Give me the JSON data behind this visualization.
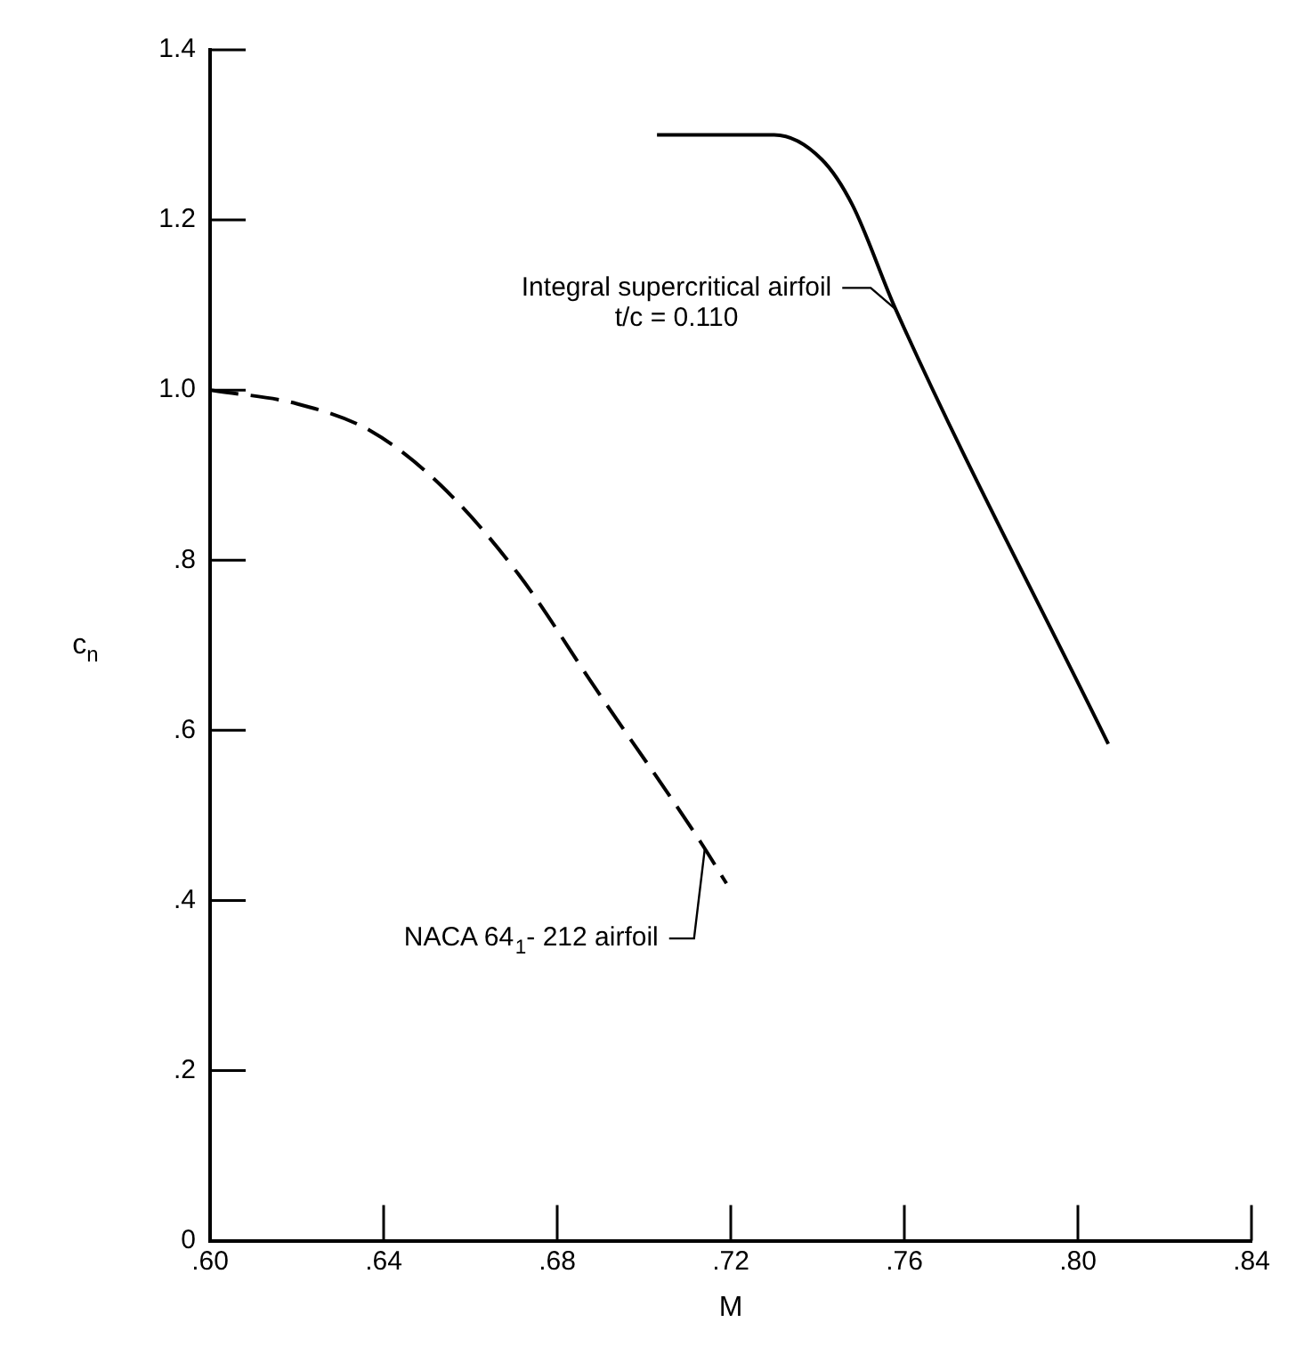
{
  "chart_data": {
    "type": "line",
    "xlabel": "M",
    "ylabel": "c$_{n}$",
    "xlim": [
      0.6,
      0.84
    ],
    "xticks": [
      {
        "value": 0.6,
        "label": ".60"
      },
      {
        "value": 0.64,
        "label": ".64"
      },
      {
        "value": 0.68,
        "label": ".68"
      },
      {
        "value": 0.72,
        "label": ".72"
      },
      {
        "value": 0.76,
        "label": ".76"
      },
      {
        "value": 0.8,
        "label": ".80"
      },
      {
        "value": 0.84,
        "label": ".84"
      }
    ],
    "ylim": [
      0,
      1.4
    ],
    "yticks": [
      0,
      {
        "value": 0.2,
        "label": ".2"
      },
      {
        "value": 0.4,
        "label": ".4"
      },
      {
        "value": 0.6,
        "label": ".6"
      },
      {
        "value": 0.8,
        "label": ".8"
      },
      {
        "value": 1,
        "label": "1.0"
      },
      {
        "value": 1.2,
        "label": "1.2"
      },
      {
        "value": 1.4,
        "label": "1.4"
      }
    ],
    "grid": false,
    "legend": false,
    "marker": "none",
    "series": [
      {
        "color": "#000000",
        "line_style": "dashed",
        "x": [
          0.6,
          0.62,
          0.637,
          0.653,
          0.671,
          0.689,
          0.713,
          0.719
        ],
        "values": [
          1.0,
          0.984,
          0.952,
          0.889,
          0.784,
          0.648,
          0.469,
          0.42
        ]
      },
      {
        "color": "#000000",
        "line_style": "solid",
        "x": [
          0.703,
          0.73,
          0.741,
          0.748,
          0.758,
          0.807
        ],
        "values": [
          1.3,
          1.3,
          1.271,
          1.218,
          1.095,
          0.584
        ]
      }
    ],
    "annotations": [
      {
        "text": "Integral supercritical airfoil\nt/c = 0.110",
        "x": 0.758,
        "y": 1.095
      },
      {
        "text": "NACA 64$_{1}$- 212 airfoil",
        "x": 0.714,
        "y": 0.46
      }
    ]
  }
}
